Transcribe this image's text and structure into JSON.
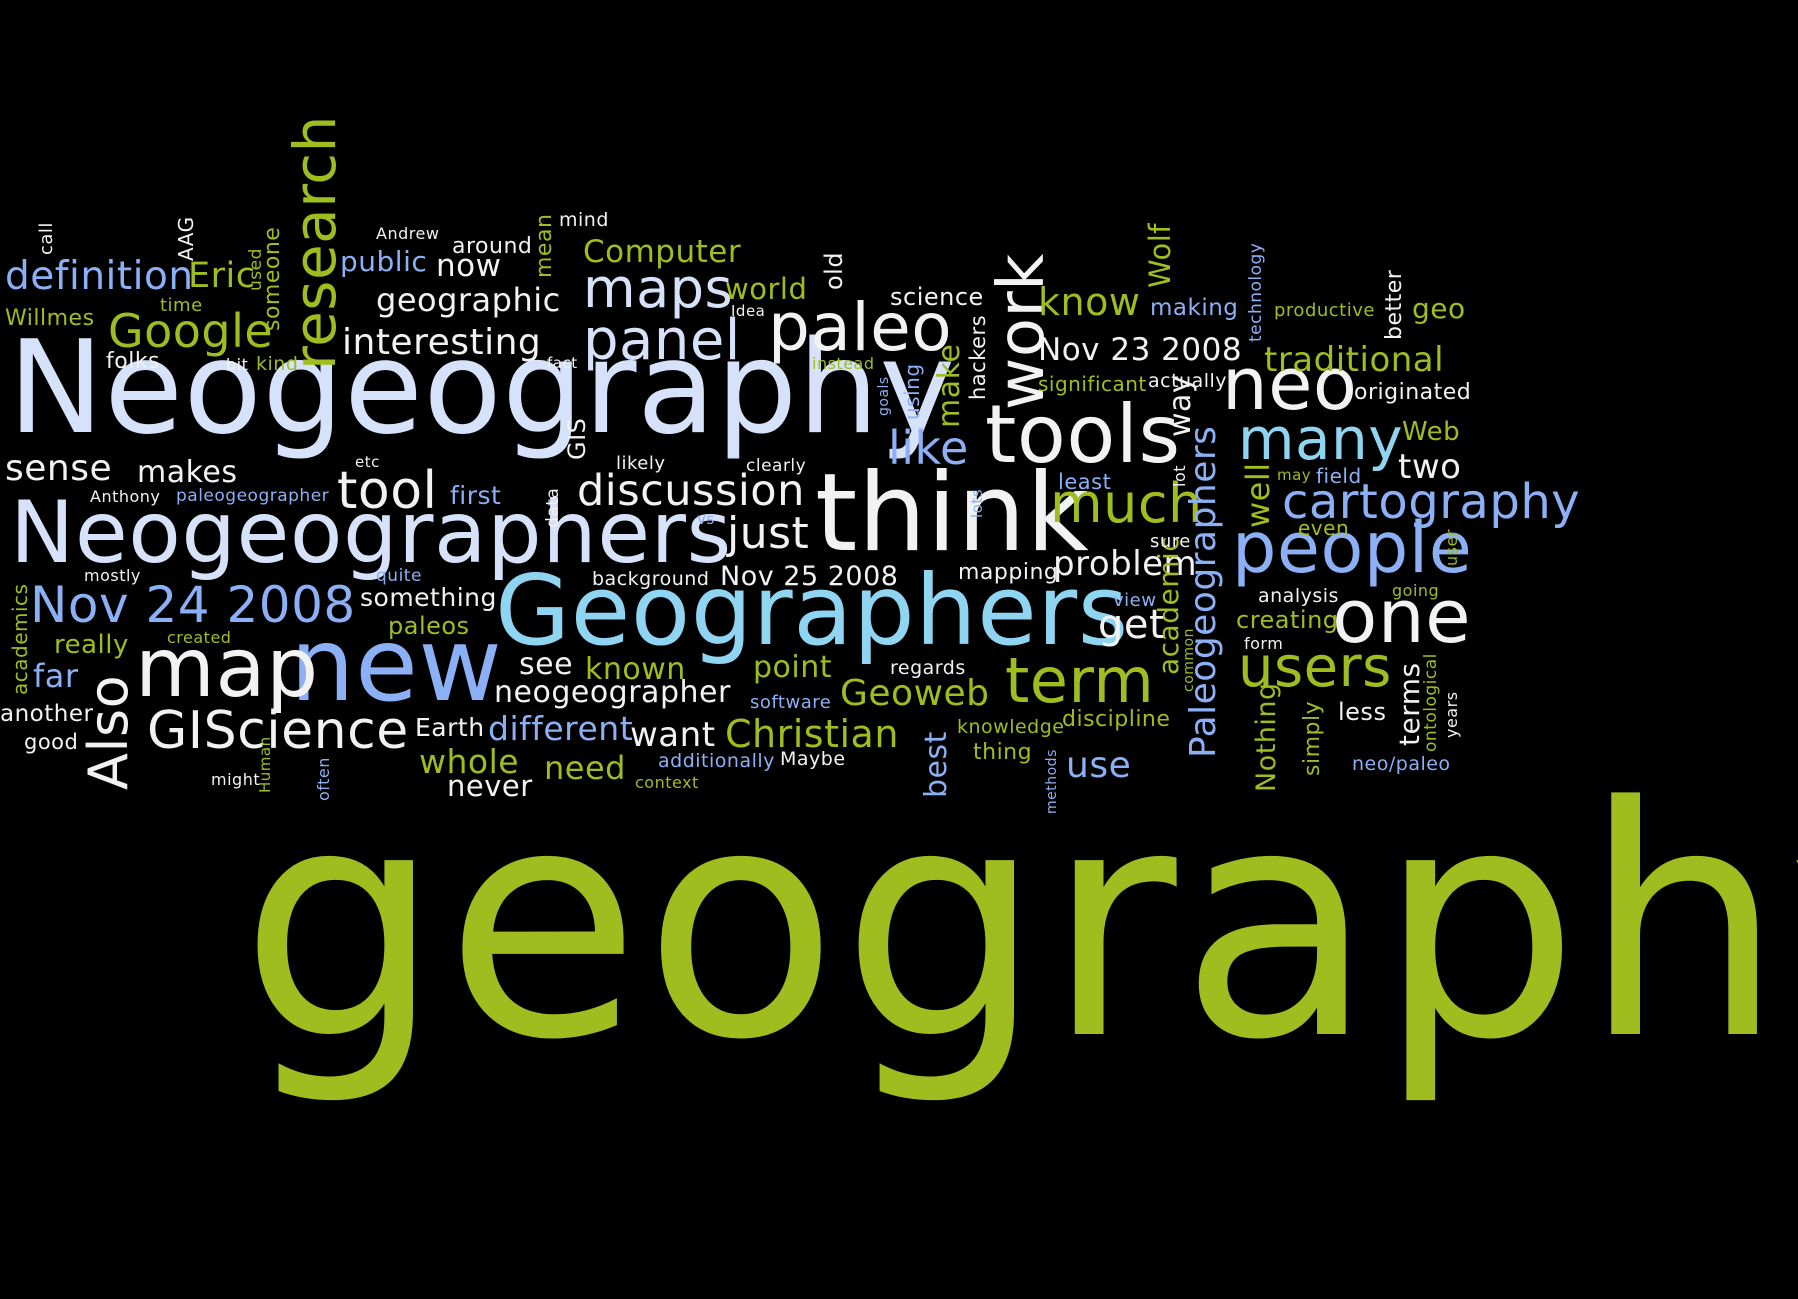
{
  "colors": {
    "background": "#000000",
    "lime": "#9fbd1f",
    "white": "#f2f2f2",
    "lavender": "#d6e1fa",
    "periwinkle": "#8cb0f5",
    "cyan": "#8fd4f0",
    "olive": "#89a13a"
  },
  "words": {
    "geography": "geography",
    "neogeography": "Neogeography",
    "neogeographers": "Neogeographers",
    "geographers": "Geographers",
    "think": "think",
    "tools": "tools",
    "new": "new",
    "map": "map",
    "one": "one",
    "people": "people",
    "neo": "neo",
    "paleo": "paleo",
    "work": "work",
    "research": "research",
    "maps": "maps",
    "panel": "panel",
    "many": "many",
    "cartography": "cartography",
    "term": "term",
    "users": "users",
    "also": "Also",
    "giscience": "GIScience",
    "nov24": "Nov 24 2008",
    "nov23": "Nov 23 2008",
    "nov25": "Nov 25 2008",
    "discussion": "discussion",
    "tool": "tool",
    "much": "much",
    "google": "Google",
    "definition": "definition",
    "eric": "Eric",
    "willmes": "Willmes",
    "sense": "sense",
    "makes": "makes",
    "interesting": "interesting",
    "geographic": "geographic",
    "public": "public",
    "now": "now",
    "around": "around",
    "andrew": "Andrew",
    "computer": "Computer",
    "mind": "mind",
    "mean": "mean",
    "old": "old",
    "world": "world",
    "science": "science",
    "know": "know",
    "wolf": "Wolf",
    "making": "making",
    "technology": "technology",
    "productive": "productive",
    "better": "better",
    "geo": "geo",
    "traditional": "traditional",
    "originated": "originated",
    "web": "Web",
    "two": "two",
    "field": "field",
    "may": "may",
    "like": "like",
    "make": "make",
    "hackers": "hackers",
    "significant": "significant",
    "actually": "actually",
    "way": "way",
    "lot": "lot",
    "least": "least",
    "well": "well",
    "paleogeographers": "Paleogeographers",
    "just": "just",
    "problem": "problem",
    "get": "get",
    "academic": "academic",
    "common": "common",
    "sure": "sure",
    "mapping": "mapping",
    "view": "view",
    "going": "going",
    "analysis": "analysis",
    "creating": "creating",
    "even": "even",
    "user": "user",
    "form": "form",
    "terms": "terms",
    "ontological": "ontological",
    "years": "years",
    "less": "less",
    "simply": "simply",
    "nothing": "Nothing",
    "neo_paleo": "neo/paleo",
    "christian": "Christian",
    "geoweb": "Geoweb",
    "point": "point",
    "known": "known",
    "see": "see",
    "neogeographer": "neogeographer",
    "want": "want",
    "different": "different",
    "earth": "Earth",
    "whole": "whole",
    "need": "need",
    "never": "never",
    "additionally": "additionally",
    "context": "context",
    "software": "software",
    "regards": "regards",
    "maybe": "Maybe",
    "best": "best",
    "knowledge": "knowledge",
    "thing": "thing",
    "discipline": "discipline",
    "use": "use",
    "methods": "methods",
    "background": "background",
    "something": "something",
    "quite": "quite",
    "paleos": "paleos",
    "mostly": "mostly",
    "academics": "academics",
    "really": "really",
    "created": "created",
    "far": "far",
    "another": "another",
    "good": "good",
    "might": "might",
    "human": "Human",
    "often": "often",
    "first": "first",
    "anthony": "Anthony",
    "paleogeographer": "paleogeographer",
    "data": "data",
    "etc": "etc",
    "likely": "likely",
    "clearly": "clearly",
    "vs": "vs",
    "gis": "GIS",
    "fact": "fact",
    "instead": "instead",
    "goals": "goals",
    "using": "using",
    "lots": "lots",
    "idea": "Idea",
    "call": "call",
    "aag": "AAG",
    "time": "time",
    "used": "used",
    "someone": "someone",
    "folks": "folks",
    "bit": "bit",
    "kind": "kind"
  }
}
